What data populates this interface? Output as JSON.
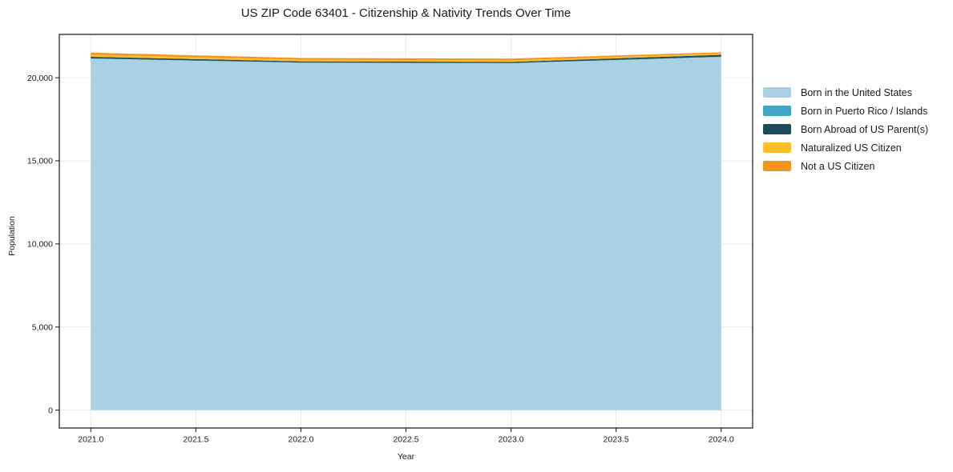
{
  "title": "US ZIP Code 63401 - Citizenship & Nativity Trends Over Time",
  "chart_data": {
    "type": "area",
    "stacked": true,
    "title": "US ZIP Code 63401 - Citizenship & Nativity Trends Over Time",
    "xlabel": "Year",
    "ylabel": "Population",
    "x": [
      2021,
      2022,
      2023,
      2024
    ],
    "series": [
      {
        "name": "Born in the United States",
        "color": "#A8D1E4",
        "values": [
          21150,
          20900,
          20870,
          21250
        ]
      },
      {
        "name": "Born in Puerto Rico / Islands",
        "color": "#41A6C3",
        "values": [
          15,
          15,
          15,
          20
        ]
      },
      {
        "name": "Born Abroad of US Parent(s)",
        "color": "#1F4B5E",
        "values": [
          95,
          70,
          70,
          110
        ]
      },
      {
        "name": "Naturalized US Citizen",
        "color": "#FCBF2D",
        "values": [
          120,
          100,
          95,
          75
        ]
      },
      {
        "name": "Not a US Citizen",
        "color": "#F7941E",
        "values": [
          130,
          100,
          100,
          75
        ]
      }
    ],
    "xticks": {
      "values": [
        2021.0,
        2021.5,
        2022.0,
        2022.5,
        2023.0,
        2023.5,
        2024.0
      ],
      "labels": [
        "2021.0",
        "2021.5",
        "2022.0",
        "2022.5",
        "2023.0",
        "2023.5",
        "2024.0"
      ]
    },
    "yticks": {
      "values": [
        0,
        5000,
        10000,
        15000,
        20000
      ],
      "labels": [
        "0",
        "5,000",
        "10,000",
        "15,000",
        "20,000"
      ]
    },
    "xlim": [
      2020.85,
      2024.15
    ],
    "ylim": [
      -1077,
      22607
    ],
    "grid": true,
    "legend_position": "right"
  },
  "colors": {
    "background": "#ffffff",
    "text": "#1a1a1a",
    "spine": "#262626",
    "grid": "#e9e9e9"
  }
}
